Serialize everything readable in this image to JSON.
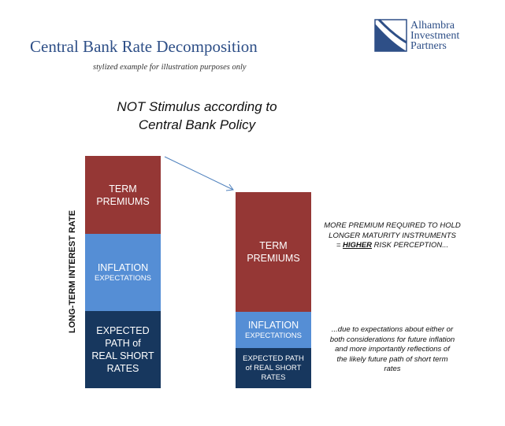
{
  "header": {
    "title": "Central Bank Rate Decomposition",
    "subtitle": "stylized example for illustration purposes only"
  },
  "logo": {
    "lines": [
      "Alhambra",
      "Investment",
      "Partners"
    ],
    "mark_color": "#2e4f87"
  },
  "headline": {
    "line1": "NOT Stimulus according to",
    "line2": "Central Bank Policy"
  },
  "y_axis_label": "LONG-TERM INTEREST RATE",
  "colors": {
    "term_premiums": "#953735",
    "inflation_expectations": "#558ed5",
    "real_short_rates": "#17375e",
    "title_blue": "#2e4f87"
  },
  "left_bar": {
    "term_premiums": [
      "TERM",
      "PREMIUMS"
    ],
    "inflation": [
      "INFLATION",
      "EXPECTATIONS"
    ],
    "real_rates": [
      "EXPECTED",
      "PATH of",
      "REAL SHORT",
      "RATES"
    ]
  },
  "right_bar": {
    "term_premiums": [
      "TERM",
      "PREMIUMS"
    ],
    "inflation": [
      "INFLATION",
      "EXPECTATIONS"
    ],
    "real_rates": [
      "EXPECTED PATH",
      "of REAL SHORT",
      "RATES"
    ]
  },
  "notes": {
    "premium": {
      "line1": "MORE PREMIUM REQUIRED TO HOLD",
      "line2": "LONGER MATURITY INSTRUMENTS",
      "line3_prefix": "= ",
      "line3_emph": "HIGHER",
      "line3_suffix": " RISK PERCEPTION..."
    },
    "expectations": {
      "line1": "...due to expectations about either or",
      "line2": "both considerations for future inflation",
      "line3": "and more importantly reflections of",
      "line4": "the likely future path of short term",
      "line5": "rates"
    }
  }
}
